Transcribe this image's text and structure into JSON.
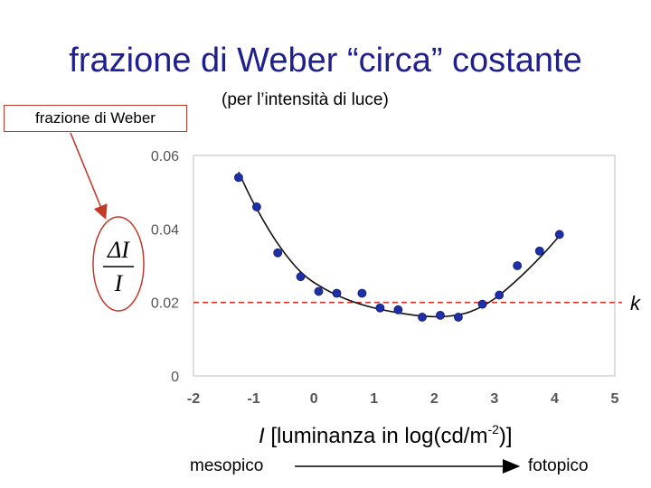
{
  "slide": {
    "title": "frazione di Weber “circa” costante",
    "subtitle": "(per l’intensità di luce)",
    "weber_label": "frazione di Weber",
    "fraction_numerator": "ΔI",
    "fraction_denominator": "I",
    "k_label": "k",
    "mesopico_label": "mesopico",
    "fotopico_label": "fotopico"
  },
  "colors": {
    "title": "#1f1f8f",
    "points": "#1f2fa8",
    "reference_line": "#d9332b",
    "annotation": "#c0392b"
  },
  "chart_data": {
    "type": "scatter",
    "xlabel_prefix": "I",
    "xlabel": "[luminanza in log(cd/m",
    "xlabel_sup": "-2",
    "xlabel_suffix": ")]",
    "ylabel": "",
    "xlim": [
      -2,
      5
    ],
    "ylim": [
      0,
      0.06
    ],
    "xticks": [
      "-2",
      "-1",
      "0",
      "1",
      "2",
      "3",
      "4",
      "5"
    ],
    "yticks": [
      "0",
      "0.02",
      "0.04",
      "0.06"
    ],
    "grid": false,
    "points": [
      {
        "x": -1.25,
        "y": 0.054
      },
      {
        "x": -0.95,
        "y": 0.046
      },
      {
        "x": -0.6,
        "y": 0.0335
      },
      {
        "x": -0.22,
        "y": 0.027
      },
      {
        "x": 0.08,
        "y": 0.023
      },
      {
        "x": 0.38,
        "y": 0.0225
      },
      {
        "x": 0.8,
        "y": 0.0225
      },
      {
        "x": 1.1,
        "y": 0.0185
      },
      {
        "x": 1.4,
        "y": 0.018
      },
      {
        "x": 1.8,
        "y": 0.016
      },
      {
        "x": 2.1,
        "y": 0.0165
      },
      {
        "x": 2.4,
        "y": 0.016
      },
      {
        "x": 2.8,
        "y": 0.0195
      },
      {
        "x": 3.08,
        "y": 0.022
      },
      {
        "x": 3.38,
        "y": 0.03
      },
      {
        "x": 3.75,
        "y": 0.034
      },
      {
        "x": 4.08,
        "y": 0.0385
      }
    ],
    "fit_curve": [
      {
        "x": -1.25,
        "y": 0.0555
      },
      {
        "x": -1.0,
        "y": 0.047
      },
      {
        "x": -0.6,
        "y": 0.036
      },
      {
        "x": -0.2,
        "y": 0.028
      },
      {
        "x": 0.2,
        "y": 0.0235
      },
      {
        "x": 0.6,
        "y": 0.0205
      },
      {
        "x": 1.0,
        "y": 0.0185
      },
      {
        "x": 1.4,
        "y": 0.0172
      },
      {
        "x": 1.8,
        "y": 0.0163
      },
      {
        "x": 2.2,
        "y": 0.0162
      },
      {
        "x": 2.6,
        "y": 0.0175
      },
      {
        "x": 3.0,
        "y": 0.021
      },
      {
        "x": 3.4,
        "y": 0.0265
      },
      {
        "x": 3.8,
        "y": 0.033
      },
      {
        "x": 4.1,
        "y": 0.0385
      }
    ],
    "reference_y": 0.02
  }
}
